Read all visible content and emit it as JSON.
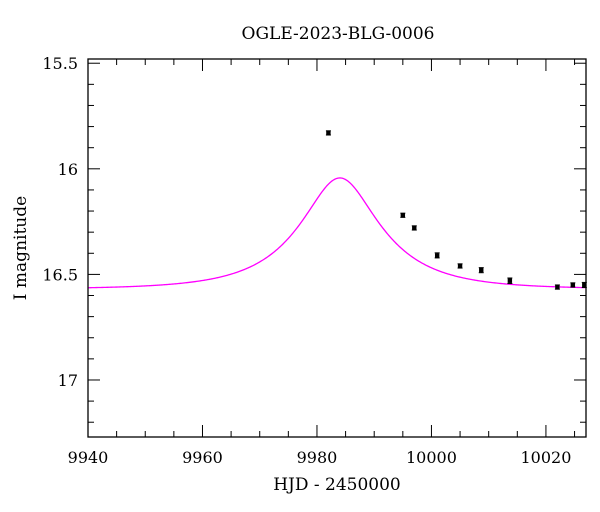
{
  "chart_data": {
    "type": "scatter",
    "title": "OGLE-2023-BLG-0006",
    "xlabel": "HJD - 2450000",
    "ylabel": "I magnitude",
    "xlim": [
      9940,
      10027
    ],
    "ylim": [
      17.27,
      15.48
    ],
    "y_axis_inverted": true,
    "x_ticks": [
      9940,
      9960,
      9980,
      10000,
      10020
    ],
    "x_tick_labels": [
      "9940",
      "9960",
      "9980",
      "10000",
      "10020"
    ],
    "y_ticks": [
      15.5,
      16,
      16.5,
      17
    ],
    "y_tick_labels": [
      "15.5",
      "16",
      "16.5",
      "17"
    ],
    "grid": false,
    "series": [
      {
        "kind": "points",
        "color": "#000000",
        "points": [
          {
            "x": 9982.0,
            "y": 15.83,
            "err": 0.01
          },
          {
            "x": 9995.0,
            "y": 16.22,
            "err": 0.01
          },
          {
            "x": 9997.0,
            "y": 16.28,
            "err": 0.01
          },
          {
            "x": 10001.0,
            "y": 16.41,
            "err": 0.012
          },
          {
            "x": 10005.0,
            "y": 16.46,
            "err": 0.01
          },
          {
            "x": 10008.7,
            "y": 16.48,
            "err": 0.012
          },
          {
            "x": 10013.7,
            "y": 16.53,
            "err": 0.013
          },
          {
            "x": 10022.0,
            "y": 16.56,
            "err": 0.01
          },
          {
            "x": 10024.7,
            "y": 16.55,
            "err": 0.01
          },
          {
            "x": 10026.7,
            "y": 16.55,
            "err": 0.012
          }
        ]
      },
      {
        "kind": "model",
        "color": "#ff00ff",
        "model": {
          "t0": 9984.0,
          "tE": 14.0,
          "u0": 0.45,
          "fs": 0.45,
          "I_base": 16.57
        }
      }
    ]
  }
}
